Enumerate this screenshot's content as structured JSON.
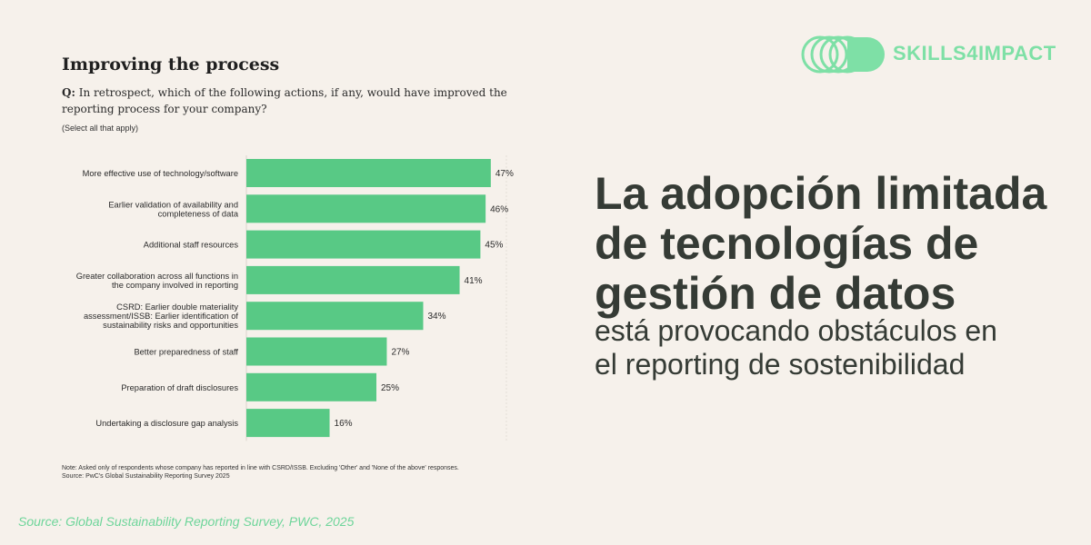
{
  "brand": {
    "name": "SKILLS4IMPACT",
    "accent": "#7ee0a6"
  },
  "headline": {
    "lines": [
      "La adopción limitada",
      "de tecnologías de",
      "gestión de datos"
    ],
    "sub_lines": [
      "está provocando obstáculos en",
      "el reporting de sostenibilidad"
    ]
  },
  "source": "Source: Global Sustainability Reporting Survey, PWC, 2025",
  "chart_data": {
    "type": "bar",
    "orientation": "horizontal",
    "title": "Improving the process",
    "question_prefix": "Q:",
    "question": "In retrospect, which of the following actions, if any, would have improved the reporting process for your company?",
    "hint": "(Select all that apply)",
    "categories": [
      [
        "More effective use of technology/software"
      ],
      [
        "Earlier validation of availability and",
        "completeness of data"
      ],
      [
        "Additional staff resources"
      ],
      [
        "Greater collaboration across all functions in",
        "the company involved in reporting"
      ],
      [
        "CSRD: Earlier double materiality",
        "assessment/ISSB: Earlier identification of",
        "sustainability risks and opportunities"
      ],
      [
        "Better preparedness of staff"
      ],
      [
        "Preparation of draft disclosures"
      ],
      [
        "Undertaking a disclosure gap analysis"
      ]
    ],
    "values": [
      47,
      46,
      45,
      41,
      34,
      27,
      25,
      16
    ],
    "labels": [
      "47%",
      "46%",
      "45%",
      "41%",
      "34%",
      "27%",
      "25%",
      "16%"
    ],
    "xlim": [
      0,
      50
    ],
    "bar_color": "#58c985",
    "note": "Note: Asked only of respondents whose company has reported in line with CSRD/ISSB. Excluding 'Other' and 'None of the above' responses.",
    "source": "Source: PwC's Global Sustainability Reporting Survey 2025"
  }
}
